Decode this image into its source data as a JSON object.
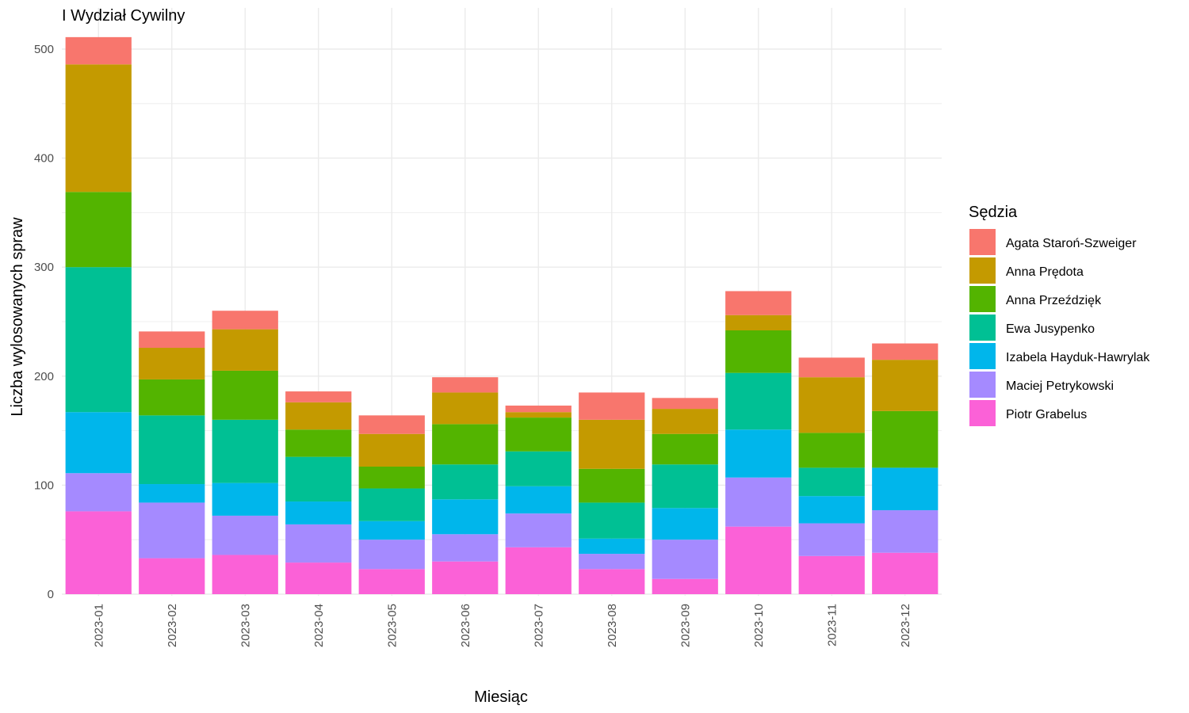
{
  "chart_data": {
    "type": "bar",
    "stacked": true,
    "title": "I Wydział Cywilny",
    "xlabel": "Miesiąc",
    "ylabel": "Liczba wylosowanych spraw",
    "ylim": [
      0,
      515
    ],
    "yticks": [
      0,
      100,
      200,
      300,
      400,
      500
    ],
    "grid": true,
    "legend_title": "Sędzia",
    "legend_position": "right",
    "categories": [
      "2023-01",
      "2023-02",
      "2023-03",
      "2023-04",
      "2023-05",
      "2023-06",
      "2023-07",
      "2023-08",
      "2023-09",
      "2023-10",
      "2023-11",
      "2023-12"
    ],
    "series": [
      {
        "name": "Agata Staroń-Szweiger",
        "color": "#F8766D",
        "values": [
          25,
          15,
          17,
          10,
          17,
          14,
          6,
          25,
          10,
          22,
          18,
          15
        ]
      },
      {
        "name": "Anna Prędota",
        "color": "#C49A00",
        "values": [
          117,
          29,
          38,
          25,
          30,
          29,
          5,
          45,
          23,
          14,
          51,
          47
        ]
      },
      {
        "name": "Anna Przeździęk",
        "color": "#53B400",
        "values": [
          69,
          33,
          45,
          25,
          20,
          37,
          31,
          31,
          28,
          39,
          32,
          52
        ]
      },
      {
        "name": "Ewa Jusypenko",
        "color": "#00C094",
        "values": [
          133,
          63,
          58,
          41,
          30,
          32,
          32,
          33,
          40,
          52,
          26,
          0
        ]
      },
      {
        "name": "Izabela Hayduk-Hawrylak",
        "color": "#00B6EB",
        "values": [
          56,
          17,
          30,
          21,
          17,
          32,
          25,
          14,
          29,
          44,
          25,
          39
        ]
      },
      {
        "name": "Maciej Petrykowski",
        "color": "#A58AFF",
        "values": [
          35,
          51,
          36,
          35,
          27,
          25,
          31,
          14,
          36,
          45,
          30,
          39
        ]
      },
      {
        "name": "Piotr Grabelus",
        "color": "#FB61D7",
        "values": [
          76,
          33,
          36,
          29,
          23,
          30,
          43,
          23,
          14,
          62,
          35,
          38
        ]
      }
    ]
  }
}
